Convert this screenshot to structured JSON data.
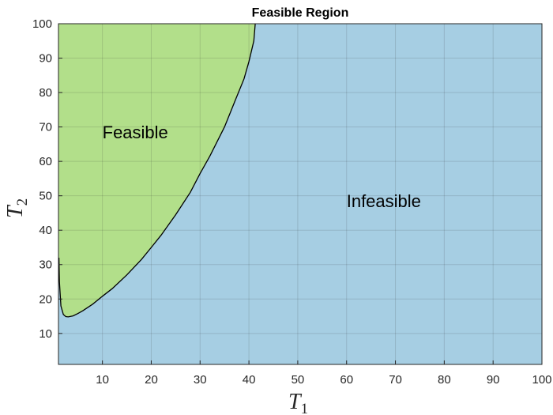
{
  "chart_data": {
    "type": "area",
    "title": "Feasible Region",
    "xlabel": {
      "base": "T",
      "sub": "1"
    },
    "ylabel": {
      "base": "T",
      "sub": "2"
    },
    "xlim": [
      1,
      100
    ],
    "ylim": [
      1,
      100
    ],
    "xticks": [
      10,
      20,
      30,
      40,
      50,
      60,
      70,
      80,
      90,
      100
    ],
    "yticks": [
      10,
      20,
      30,
      40,
      50,
      60,
      70,
      80,
      90,
      100
    ],
    "grid": true,
    "regions": [
      {
        "label": "Feasible",
        "color": "#b2df8a",
        "label_at": [
          10,
          68.5
        ]
      },
      {
        "label": "Infeasible",
        "color": "#a6cee3",
        "label_at": [
          60,
          48.5
        ]
      }
    ],
    "boundary": {
      "x": [
        1.1,
        1.2,
        1.5,
        2.0,
        2.5,
        3.0,
        4.0,
        5.0,
        6.0,
        8.0,
        10.0,
        12.0,
        15.0,
        18.0,
        20.0,
        22.0,
        25.0,
        28.0,
        30.0,
        32.0,
        35.0,
        37.0,
        39.0,
        40.0,
        41.0,
        41.3
      ],
      "y": [
        32.0,
        25.0,
        18.0,
        15.5,
        14.9,
        14.8,
        15.1,
        15.8,
        16.6,
        18.5,
        20.8,
        23.0,
        27.0,
        31.5,
        35.0,
        38.5,
        44.5,
        51.0,
        56.5,
        61.5,
        70.0,
        77.0,
        84.0,
        89.0,
        95.0,
        100.0
      ]
    },
    "boundary_color": "#000000",
    "grid_color": "#26262626",
    "axis_color": "#262626"
  }
}
